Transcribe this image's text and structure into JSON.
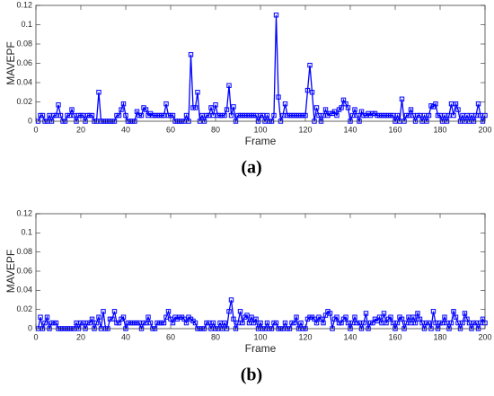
{
  "chart_data": [
    {
      "type": "line",
      "caption": "(a)",
      "xlabel": "Frame",
      "ylabel": "MAVEPF",
      "xlim": [
        0,
        200
      ],
      "xticks": [
        0,
        20,
        40,
        60,
        80,
        100,
        120,
        140,
        160,
        180,
        200
      ],
      "ylim": [
        0,
        0.12
      ],
      "yticks": [
        0,
        0.02,
        0.04,
        0.06,
        0.08,
        0.1,
        0.12
      ],
      "x": [
        1,
        2,
        3,
        4,
        5,
        6,
        7,
        8,
        9,
        10,
        11,
        12,
        13,
        14,
        15,
        16,
        17,
        18,
        19,
        20,
        21,
        22,
        23,
        24,
        25,
        26,
        27,
        28,
        29,
        30,
        31,
        32,
        33,
        34,
        35,
        36,
        37,
        38,
        39,
        40,
        41,
        42,
        43,
        44,
        45,
        46,
        47,
        48,
        49,
        50,
        51,
        52,
        53,
        54,
        55,
        56,
        57,
        58,
        59,
        60,
        61,
        62,
        63,
        64,
        65,
        66,
        67,
        68,
        69,
        70,
        71,
        72,
        73,
        74,
        75,
        76,
        77,
        78,
        79,
        80,
        81,
        82,
        83,
        84,
        85,
        86,
        87,
        88,
        89,
        90,
        91,
        92,
        93,
        94,
        95,
        96,
        97,
        98,
        99,
        100,
        101,
        102,
        103,
        104,
        105,
        106,
        107,
        108,
        109,
        110,
        111,
        112,
        113,
        114,
        115,
        116,
        117,
        118,
        119,
        120,
        121,
        122,
        123,
        124,
        125,
        126,
        127,
        128,
        129,
        130,
        131,
        132,
        133,
        134,
        135,
        136,
        137,
        138,
        139,
        140,
        141,
        142,
        143,
        144,
        145,
        146,
        147,
        148,
        149,
        150,
        151,
        152,
        153,
        154,
        155,
        156,
        157,
        158,
        159,
        160,
        161,
        162,
        163,
        164,
        165,
        166,
        167,
        168,
        169,
        170,
        171,
        172,
        173,
        174,
        175,
        176,
        177,
        178,
        179,
        180,
        181,
        182,
        183,
        184,
        185,
        186,
        187,
        188,
        189,
        190,
        191,
        192,
        193,
        194,
        195,
        196,
        197,
        198,
        199,
        200
      ],
      "series": [
        {
          "color": "#0000ff",
          "values": [
            0,
            0.006,
            0.006,
            0,
            0,
            0.006,
            0,
            0.006,
            0.006,
            0.017,
            0.006,
            0,
            0,
            0.006,
            0.006,
            0.012,
            0.006,
            0,
            0.006,
            0.006,
            0.006,
            0,
            0.006,
            0.006,
            0.006,
            0,
            0,
            0.03,
            0,
            0,
            0,
            0,
            0,
            0,
            0,
            0.006,
            0.006,
            0.012,
            0.018,
            0.006,
            0,
            0,
            0,
            0,
            0.01,
            0.006,
            0.006,
            0.014,
            0.012,
            0.006,
            0.008,
            0.006,
            0.006,
            0.006,
            0.006,
            0.006,
            0.006,
            0.018,
            0.006,
            0.006,
            0.006,
            0,
            0,
            0,
            0,
            0,
            0.006,
            0,
            0.069,
            0.014,
            0.014,
            0.03,
            0,
            0.006,
            0,
            0.006,
            0.006,
            0.014,
            0.006,
            0.017,
            0.006,
            0.006,
            0.006,
            0.006,
            0.012,
            0.037,
            0.006,
            0.015,
            0,
            0.006,
            0.006,
            0.006,
            0.006,
            0.006,
            0.006,
            0.006,
            0.006,
            0.006,
            0,
            0.006,
            0.006,
            0,
            0.006,
            0,
            0,
            0.006,
            0.11,
            0.025,
            0,
            0.006,
            0.018,
            0.006,
            0.006,
            0.006,
            0.006,
            0.006,
            0.006,
            0.006,
            0.006,
            0.006,
            0.032,
            0.058,
            0.03,
            0,
            0.014,
            0.006,
            0,
            0.006,
            0.012,
            0.006,
            0.008,
            0.008,
            0.01,
            0.006,
            0.012,
            0.014,
            0.022,
            0.018,
            0.014,
            0,
            0.006,
            0.012,
            0.006,
            0,
            0.01,
            0.006,
            0.006,
            0.008,
            0.006,
            0.008,
            0.008,
            0.006,
            0.006,
            0.006,
            0.006,
            0.006,
            0.006,
            0.006,
            0.006,
            0,
            0.006,
            0,
            0.023,
            0,
            0.006,
            0.006,
            0.012,
            0.006,
            0,
            0.006,
            0.006,
            0,
            0.006,
            0,
            0.006,
            0.016,
            0.015,
            0.018,
            0.006,
            0.006,
            0,
            0.006,
            0,
            0.006,
            0.018,
            0.006,
            0.018,
            0.012,
            0,
            0.006,
            0,
            0.006,
            0,
            0.006,
            0,
            0.006,
            0.018,
            0.006,
            0,
            0.006
          ]
        }
      ]
    },
    {
      "type": "line",
      "caption": "(b)",
      "xlabel": "Frame",
      "ylabel": "MAVEPF",
      "xlim": [
        0,
        200
      ],
      "xticks": [
        0,
        20,
        40,
        60,
        80,
        100,
        120,
        140,
        160,
        180,
        200
      ],
      "ylim": [
        0,
        0.12
      ],
      "yticks": [
        0,
        0.02,
        0.04,
        0.06,
        0.08,
        0.1,
        0.12
      ],
      "x": [
        1,
        2,
        3,
        4,
        5,
        6,
        7,
        8,
        9,
        10,
        11,
        12,
        13,
        14,
        15,
        16,
        17,
        18,
        19,
        20,
        21,
        22,
        23,
        24,
        25,
        26,
        27,
        28,
        29,
        30,
        31,
        32,
        33,
        34,
        35,
        36,
        37,
        38,
        39,
        40,
        41,
        42,
        43,
        44,
        45,
        46,
        47,
        48,
        49,
        50,
        51,
        52,
        53,
        54,
        55,
        56,
        57,
        58,
        59,
        60,
        61,
        62,
        63,
        64,
        65,
        66,
        67,
        68,
        69,
        70,
        71,
        72,
        73,
        74,
        75,
        76,
        77,
        78,
        79,
        80,
        81,
        82,
        83,
        84,
        85,
        86,
        87,
        88,
        89,
        90,
        91,
        92,
        93,
        94,
        95,
        96,
        97,
        98,
        99,
        100,
        101,
        102,
        103,
        104,
        105,
        106,
        107,
        108,
        109,
        110,
        111,
        112,
        113,
        114,
        115,
        116,
        117,
        118,
        119,
        120,
        121,
        122,
        123,
        124,
        125,
        126,
        127,
        128,
        129,
        130,
        131,
        132,
        133,
        134,
        135,
        136,
        137,
        138,
        139,
        140,
        141,
        142,
        143,
        144,
        145,
        146,
        147,
        148,
        149,
        150,
        151,
        152,
        153,
        154,
        155,
        156,
        157,
        158,
        159,
        160,
        161,
        162,
        163,
        164,
        165,
        166,
        167,
        168,
        169,
        170,
        171,
        172,
        173,
        174,
        175,
        176,
        177,
        178,
        179,
        180,
        181,
        182,
        183,
        184,
        185,
        186,
        187,
        188,
        189,
        190,
        191,
        192,
        193,
        194,
        195,
        196,
        197,
        198,
        199,
        200
      ],
      "series": [
        {
          "color": "#0000ff",
          "values": [
            0,
            0.012,
            0,
            0.006,
            0.012,
            0,
            0.006,
            0.006,
            0.006,
            0,
            0,
            0,
            0,
            0,
            0,
            0,
            0,
            0.006,
            0,
            0.006,
            0.006,
            0,
            0.006,
            0.006,
            0.01,
            0,
            0.006,
            0.012,
            0,
            0.018,
            0,
            0,
            0.01,
            0.01,
            0.018,
            0.006,
            0.006,
            0.01,
            0.012,
            0,
            0.006,
            0.006,
            0.006,
            0.006,
            0.006,
            0.006,
            0,
            0.006,
            0.006,
            0.012,
            0.006,
            0,
            0,
            0.006,
            0.006,
            0.006,
            0.006,
            0.012,
            0.018,
            0.01,
            0.006,
            0.012,
            0.01,
            0.012,
            0.012,
            0.01,
            0.006,
            0.012,
            0.01,
            0.008,
            0.006,
            0,
            0,
            0,
            0,
            0.006,
            0.006,
            0,
            0.006,
            0,
            0,
            0.006,
            0,
            0.006,
            0,
            0.018,
            0.03,
            0.01,
            0,
            0.006,
            0.018,
            0.006,
            0.012,
            0.014,
            0.006,
            0.012,
            0.006,
            0.01,
            0,
            0.006,
            0,
            0,
            0.006,
            0,
            0,
            0.006,
            0.006,
            0,
            0,
            0,
            0.006,
            0,
            0,
            0.006,
            0.006,
            0.012,
            0,
            0.006,
            0,
            0,
            0.01,
            0.012,
            0.012,
            0.01,
            0.006,
            0.012,
            0.01,
            0.006,
            0.014,
            0.018,
            0.016,
            0,
            0.01,
            0.012,
            0.006,
            0.006,
            0.01,
            0.012,
            0.006,
            0,
            0.006,
            0.012,
            0.006,
            0.006,
            0,
            0.006,
            0.016,
            0,
            0.006,
            0.006,
            0.01,
            0.008,
            0.012,
            0.006,
            0.016,
            0.006,
            0.01,
            0.012,
            0.006,
            0,
            0.006,
            0.012,
            0.01,
            0,
            0.006,
            0.012,
            0.006,
            0.012,
            0.006,
            0.016,
            0.01,
            0.006,
            0,
            0.006,
            0.006,
            0,
            0.018,
            0.006,
            0,
            0.006,
            0.006,
            0.012,
            0.006,
            0,
            0.006,
            0.018,
            0.012,
            0.006,
            0,
            0.006,
            0.016,
            0.01,
            0.006,
            0,
            0.006,
            0.006,
            0,
            0.006,
            0.01,
            0.006
          ]
        }
      ]
    }
  ]
}
